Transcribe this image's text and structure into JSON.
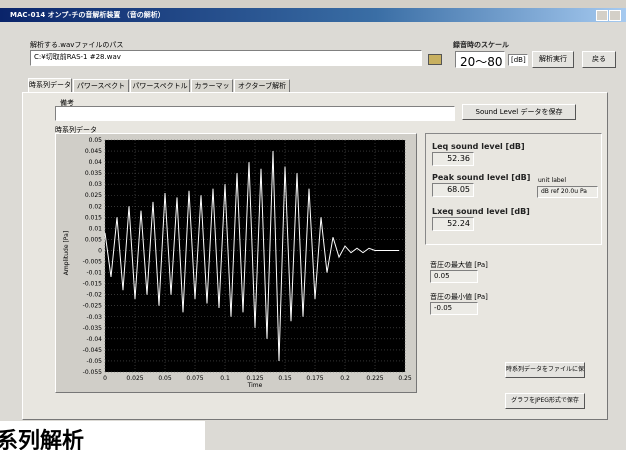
{
  "window": {
    "title": "MAC-014 オンプ-チの音解析装置 （音の解析）"
  },
  "file": {
    "label": "解析する.wavファイルのパス",
    "path": "C:¥切取前RAS-1 #28.wav"
  },
  "scale": {
    "label": "録音時のスケール",
    "value": "20〜80",
    "unit": "[dB]"
  },
  "buttons": {
    "run": "解析実行",
    "back": "戻る",
    "save_level": "Sound Level データを保存",
    "save_series": "時系列データをファイルに保存",
    "save_jpeg": "グラフをJPEG形式で保存"
  },
  "tabs": [
    "時系列データ",
    "パワースペクトル",
    "パワースペクトル dB",
    "カラーマップ",
    "オクターブ解析"
  ],
  "remarks_label": "備考",
  "chart_data": {
    "type": "line",
    "title": "時系列データ",
    "x_label": "Time",
    "y_label": "Amplitude [Pa]",
    "x": [
      0,
      0.005,
      0.01,
      0.015,
      0.02,
      0.025,
      0.03,
      0.035,
      0.04,
      0.045,
      0.05,
      0.055,
      0.06,
      0.065,
      0.07,
      0.075,
      0.08,
      0.085,
      0.09,
      0.095,
      0.1,
      0.105,
      0.11,
      0.115,
      0.12,
      0.125,
      0.13,
      0.135,
      0.14,
      0.145,
      0.15,
      0.155,
      0.16,
      0.165,
      0.17,
      0.175,
      0.18,
      0.185,
      0.19,
      0.195,
      0.2,
      0.205,
      0.21,
      0.215,
      0.22,
      0.225,
      0.23,
      0.235,
      0.24,
      0.245
    ],
    "values": [
      0.008,
      -0.012,
      0.015,
      -0.018,
      0.02,
      -0.022,
      0.018,
      -0.02,
      0.022,
      -0.025,
      0.026,
      -0.02,
      0.024,
      -0.028,
      0.027,
      -0.022,
      0.025,
      -0.024,
      0.028,
      -0.026,
      0.03,
      -0.03,
      0.035,
      -0.028,
      0.04,
      -0.035,
      0.037,
      -0.04,
      0.045,
      -0.05,
      0.038,
      -0.032,
      0.035,
      -0.03,
      0.028,
      -0.022,
      0.015,
      -0.01,
      0.006,
      -0.003,
      0.002,
      -0.001,
      0.001,
      -0.001,
      0.001,
      0,
      0,
      0,
      0,
      0
    ],
    "color": "#ffffff",
    "xlim": [
      0,
      0.25
    ],
    "xticks": [
      0,
      0.025,
      0.05,
      0.075,
      0.1,
      0.125,
      0.15,
      0.175,
      0.2,
      0.225,
      0.25
    ],
    "ylim": [
      -0.055,
      0.05
    ],
    "yticks": [
      0.05,
      0.045,
      0.04,
      0.035,
      0.03,
      0.025,
      0.02,
      0.015,
      0.01,
      0.005,
      0,
      -0.005,
      -0.01,
      -0.015,
      -0.02,
      -0.025,
      -0.03,
      -0.035,
      -0.04,
      -0.045,
      -0.05,
      -0.055
    ],
    "grid": true
  },
  "levels": {
    "leq": {
      "label": "Leq sound level [dB]",
      "value": 52.36
    },
    "peak": {
      "label": "Peak sound level [dB]",
      "value": 68.05
    },
    "lxeq": {
      "label": "Lxeq sound level [dB]",
      "value": 52.24
    },
    "unit_label": "unit label",
    "unit": "dB ref 20.0u Pa"
  },
  "pressure": {
    "max": {
      "label": "音圧の最大値 [Pa]",
      "value": 0.05
    },
    "min": {
      "label": "音圧の最小値 [Pa]",
      "value": -0.05
    }
  },
  "overlay": "系列解析"
}
